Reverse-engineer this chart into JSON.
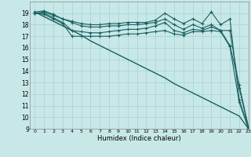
{
  "xlabel": "Humidex (Indice chaleur)",
  "background_color": "#c8e8e8",
  "grid_color": "#a8d0d0",
  "line_color": "#1a6060",
  "xlim": [
    -0.5,
    23
  ],
  "ylim": [
    9,
    20
  ],
  "yticks": [
    9,
    10,
    11,
    12,
    13,
    14,
    15,
    16,
    17,
    18,
    19
  ],
  "xticks": [
    0,
    1,
    2,
    3,
    4,
    5,
    6,
    7,
    8,
    9,
    10,
    11,
    12,
    13,
    14,
    15,
    16,
    17,
    18,
    19,
    20,
    21,
    22,
    23
  ],
  "series": [
    {
      "x": [
        0,
        1,
        2,
        3,
        4,
        5,
        6,
        7,
        8,
        9,
        10,
        11,
        12,
        13,
        14,
        15,
        16,
        17,
        18,
        19,
        20,
        21,
        22,
        23
      ],
      "y": [
        19.1,
        18.7,
        18.3,
        17.9,
        17.5,
        17.1,
        16.6,
        16.2,
        15.8,
        15.4,
        15.0,
        14.6,
        14.2,
        13.8,
        13.4,
        12.9,
        12.5,
        12.1,
        11.7,
        11.3,
        10.9,
        10.5,
        10.1,
        9.0
      ],
      "marker": null,
      "linewidth": 1.0
    },
    {
      "x": [
        0,
        1,
        2,
        3,
        4,
        5,
        6,
        7,
        8,
        9,
        10,
        11,
        12,
        13,
        14,
        15,
        16,
        17,
        18,
        19,
        20,
        21,
        22,
        23
      ],
      "y": [
        19.1,
        19.2,
        18.9,
        18.5,
        18.3,
        18.1,
        18.0,
        18.0,
        18.1,
        18.1,
        18.2,
        18.2,
        18.2,
        18.4,
        19.0,
        18.5,
        18.1,
        18.5,
        18.1,
        19.1,
        18.0,
        18.5,
        11.5,
        9.1
      ],
      "marker": "+",
      "linewidth": 0.8
    },
    {
      "x": [
        0,
        1,
        2,
        3,
        4,
        5,
        6,
        7,
        8,
        9,
        10,
        11,
        12,
        13,
        14,
        15,
        16,
        17,
        18,
        19,
        20,
        21,
        22,
        23
      ],
      "y": [
        19.0,
        19.1,
        18.8,
        18.5,
        18.2,
        17.9,
        17.8,
        17.8,
        17.9,
        17.9,
        18.0,
        18.0,
        18.1,
        18.2,
        18.5,
        18.0,
        17.6,
        18.0,
        17.7,
        18.0,
        17.5,
        17.5,
        12.5,
        9.1
      ],
      "marker": "+",
      "linewidth": 0.8
    },
    {
      "x": [
        0,
        1,
        2,
        3,
        4,
        5,
        6,
        7,
        8,
        9,
        10,
        11,
        12,
        13,
        14,
        15,
        16,
        17,
        18,
        19,
        20,
        21,
        22,
        23
      ],
      "y": [
        19.0,
        19.0,
        18.6,
        18.2,
        17.5,
        17.4,
        17.3,
        17.3,
        17.4,
        17.5,
        17.6,
        17.6,
        17.7,
        17.9,
        18.2,
        17.5,
        17.3,
        17.6,
        17.5,
        17.8,
        17.5,
        16.2,
        12.8,
        9.1
      ],
      "marker": "+",
      "linewidth": 0.8
    },
    {
      "x": [
        0,
        1,
        2,
        3,
        4,
        5,
        6,
        7,
        8,
        9,
        10,
        11,
        12,
        13,
        14,
        15,
        16,
        17,
        18,
        19,
        20,
        21,
        22,
        23
      ],
      "y": [
        19.0,
        18.9,
        18.5,
        18.1,
        17.0,
        17.0,
        17.0,
        17.0,
        17.0,
        17.1,
        17.2,
        17.2,
        17.3,
        17.4,
        17.5,
        17.2,
        17.1,
        17.4,
        17.4,
        17.5,
        17.4,
        16.1,
        11.3,
        9.0
      ],
      "marker": "+",
      "linewidth": 0.8
    }
  ]
}
